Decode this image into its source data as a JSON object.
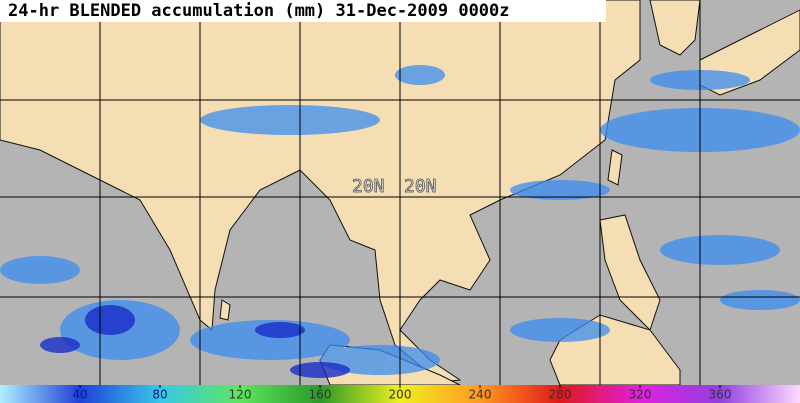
{
  "title": "24-hr BLENDED accumulation (mm) 31-Dec-2009 0000z",
  "grid_labels": [
    "20N",
    "20N"
  ],
  "colorbar": {
    "ticks": [
      40,
      80,
      120,
      160,
      200,
      240,
      280,
      320,
      360
    ]
  }
}
